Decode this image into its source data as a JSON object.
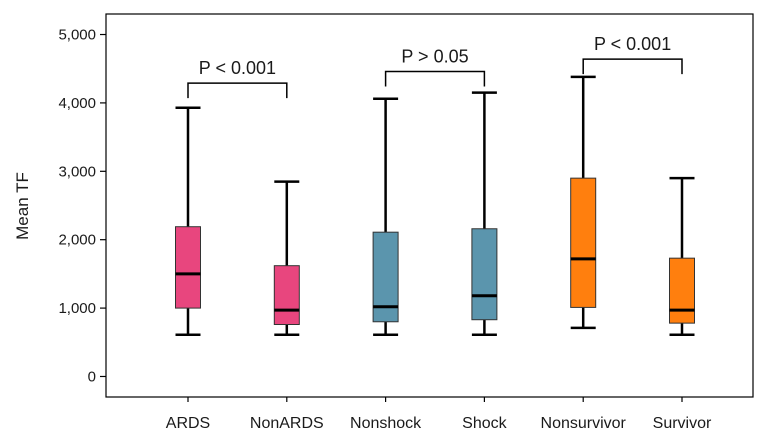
{
  "chart_data": {
    "type": "box",
    "ylabel": "Mean TF",
    "xlabel": "",
    "ylim": [
      -300,
      5300
    ],
    "yticks": [
      0,
      1000,
      2000,
      3000,
      4000,
      5000
    ],
    "ytick_labels": [
      "0",
      "1,000",
      "2,000",
      "3,000",
      "4,000",
      "5,000"
    ],
    "grid": false,
    "categories": [
      "ARDS",
      "NonARDS",
      "Nonshock",
      "Shock",
      "Nonsurvivor",
      "Survivor"
    ],
    "boxes": [
      {
        "category": "ARDS",
        "min": 610,
        "q1": 1000,
        "median": 1500,
        "q3": 2190,
        "max": 3930,
        "color": "#e8467e"
      },
      {
        "category": "NonARDS",
        "min": 610,
        "q1": 760,
        "median": 970,
        "q3": 1620,
        "max": 2850,
        "color": "#e8467e"
      },
      {
        "category": "Nonshock",
        "min": 610,
        "q1": 800,
        "median": 1020,
        "q3": 2110,
        "max": 4060,
        "color": "#5b95ad"
      },
      {
        "category": "Shock",
        "min": 610,
        "q1": 830,
        "median": 1180,
        "q3": 2160,
        "max": 4150,
        "color": "#5b95ad"
      },
      {
        "category": "Nonsurvivor",
        "min": 710,
        "q1": 1010,
        "median": 1720,
        "q3": 2900,
        "max": 4380,
        "color": "#ff7f0e"
      },
      {
        "category": "Survivor",
        "min": 610,
        "q1": 780,
        "median": 970,
        "q3": 1730,
        "max": 2900,
        "color": "#ff7f0e"
      }
    ],
    "annotations": [
      {
        "from": 0,
        "to": 1,
        "label": "P < 0.001",
        "y": 4290
      },
      {
        "from": 2,
        "to": 3,
        "label": "P > 0.05",
        "y": 4460
      },
      {
        "from": 4,
        "to": 5,
        "label": "P < 0.001",
        "y": 4640
      }
    ]
  }
}
